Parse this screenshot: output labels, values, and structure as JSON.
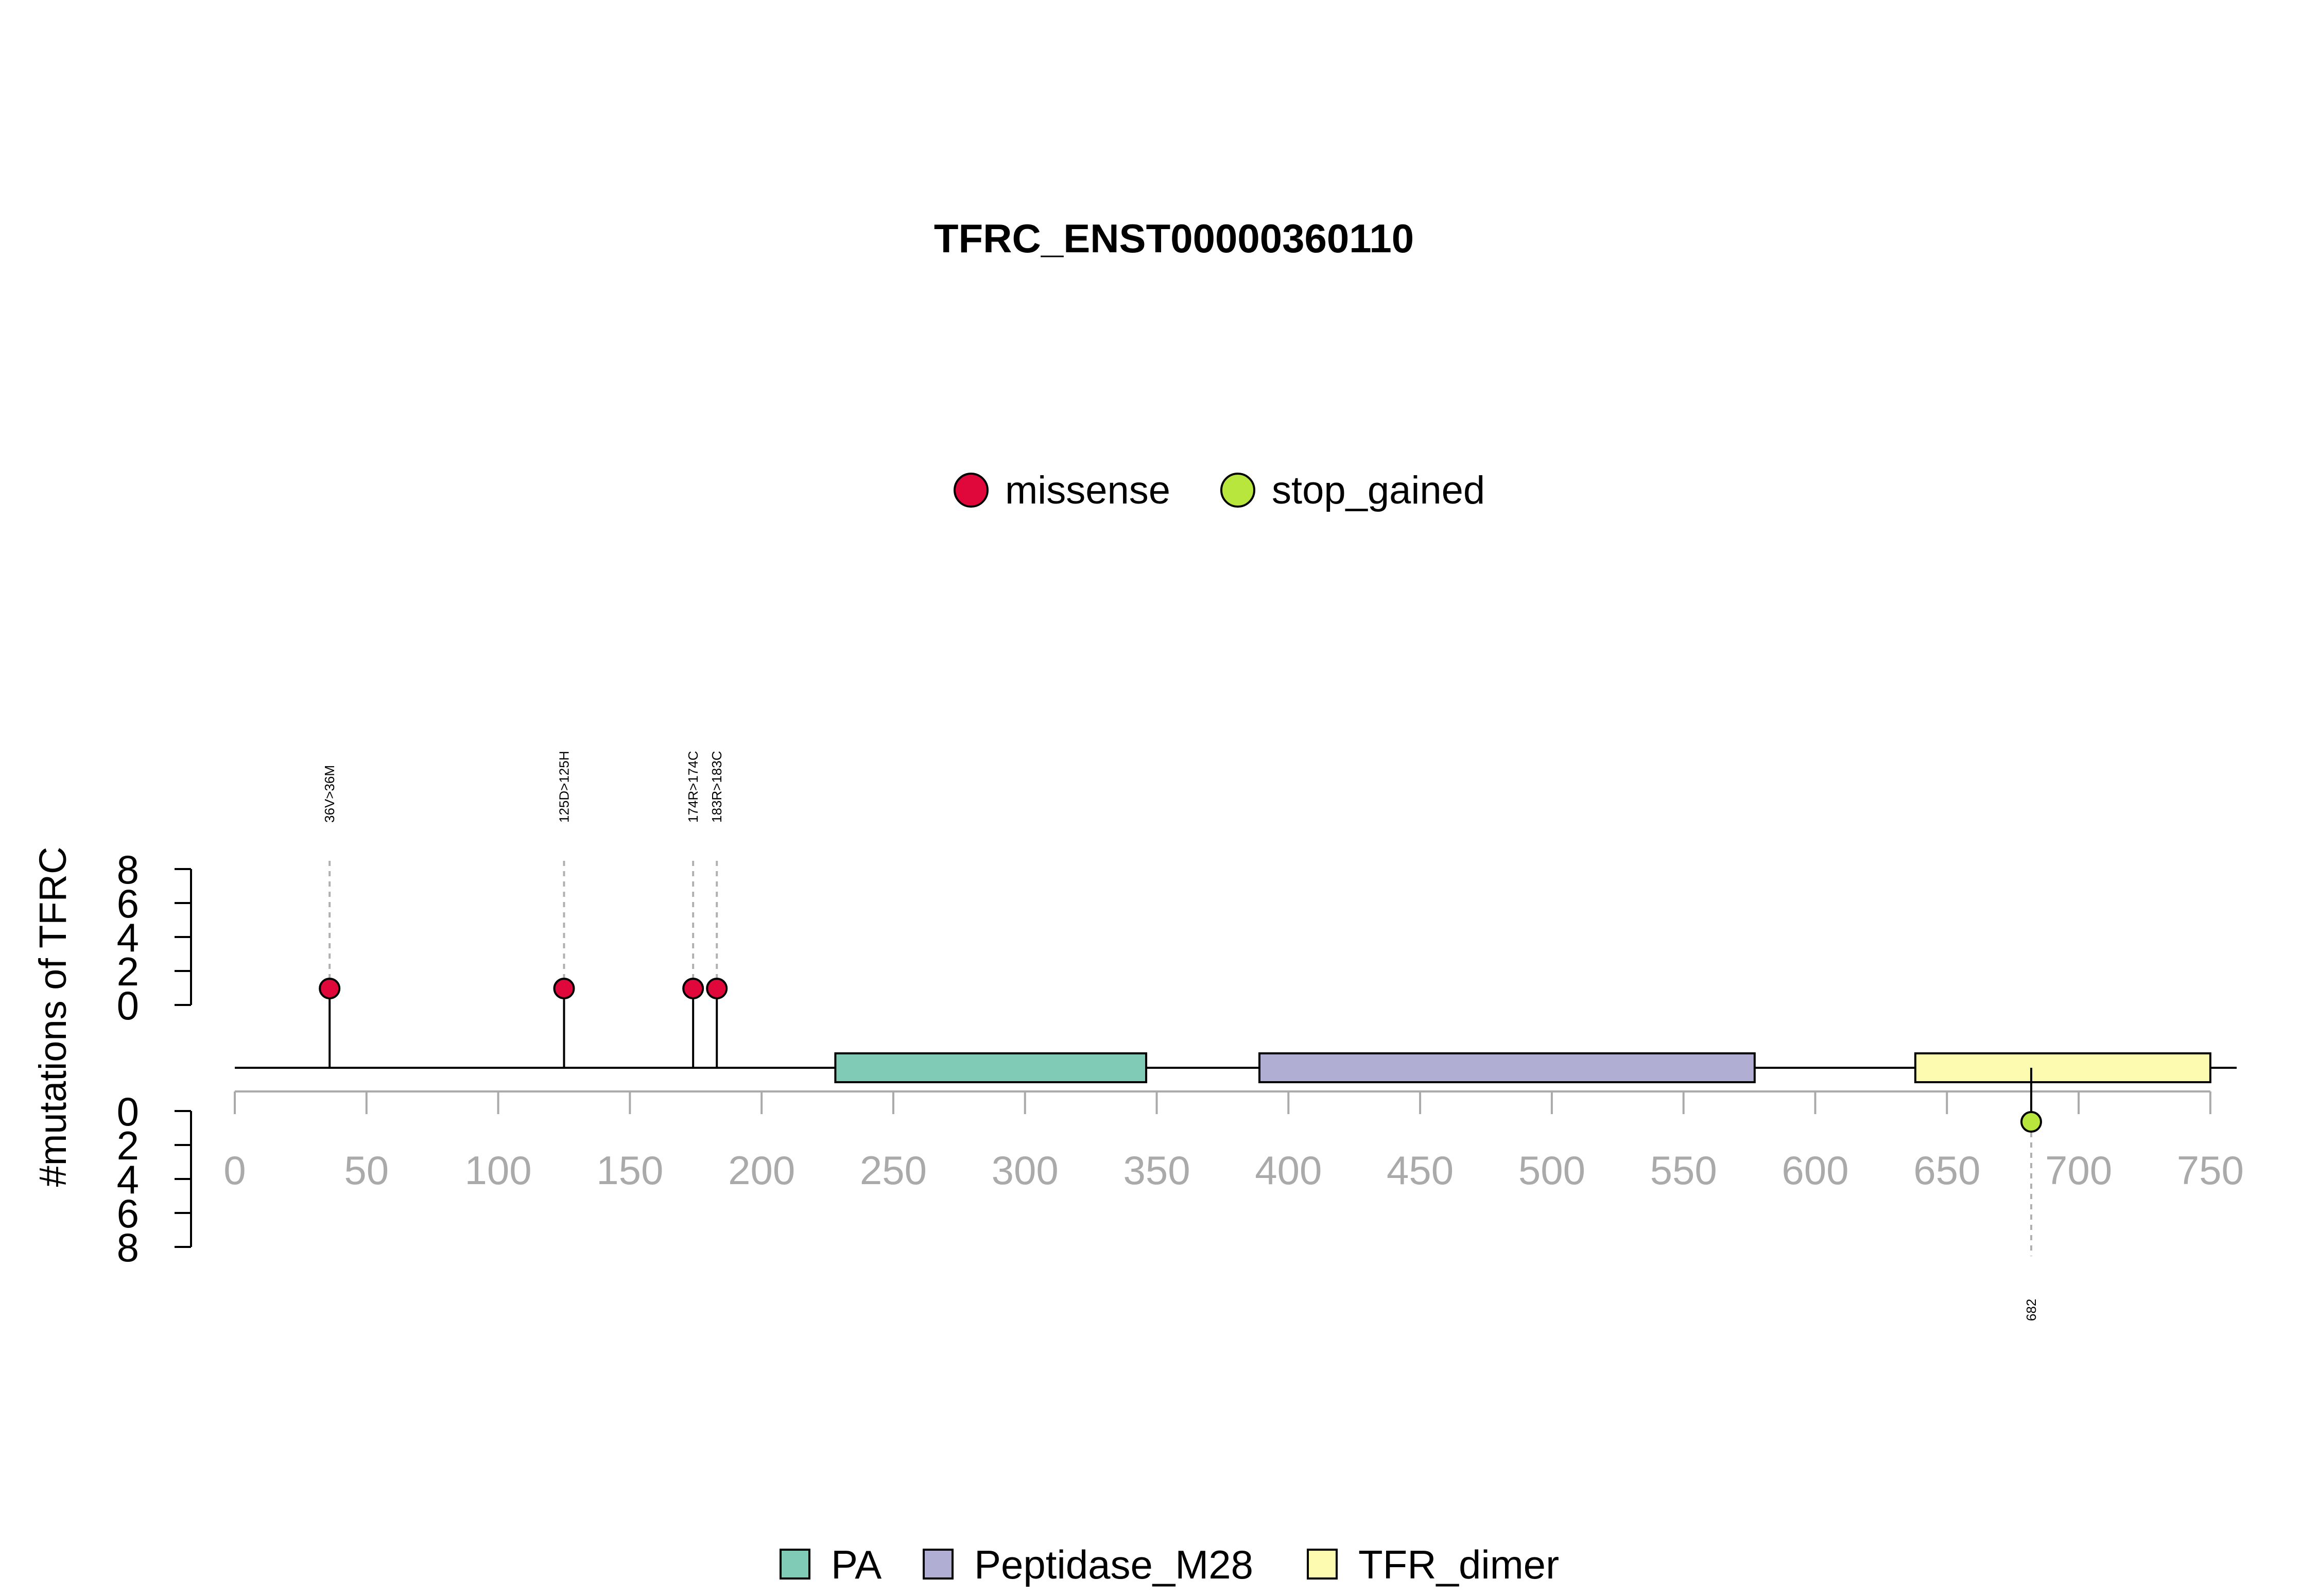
{
  "chart_data": {
    "type": "lollipop",
    "title": "TFRC_ENST00000360110",
    "ylabel": "#mutations of TFRC",
    "xlim": [
      0,
      760
    ],
    "x_ticks": [
      "0",
      "50",
      "100",
      "150",
      "200",
      "250",
      "300",
      "350",
      "400",
      "450",
      "500",
      "550",
      "600",
      "650",
      "700",
      "750"
    ],
    "y_ticks": [
      "0",
      "2",
      "4",
      "6",
      "8"
    ],
    "ylim": [
      0,
      8
    ],
    "protein_length": 760,
    "mutation_legend": [
      {
        "name": "missense",
        "color": "#e0073b"
      },
      {
        "name": "stop_gained",
        "color": "#b8e63c"
      }
    ],
    "domain_legend": [
      {
        "name": "PA",
        "color": "#7fcbb6"
      },
      {
        "name": "Peptidase_M28",
        "color": "#b1aed3"
      },
      {
        "name": "TFR_dimer",
        "color": "#fdfbb0"
      }
    ],
    "domains": [
      {
        "name": "PA",
        "start": 228,
        "end": 346,
        "color": "#7fcbb6"
      },
      {
        "name": "Peptidase_M28",
        "start": 389,
        "end": 577,
        "color": "#b1aed3"
      },
      {
        "name": "TFR_dimer",
        "start": 638,
        "end": 750,
        "color": "#fdfbb0"
      }
    ],
    "mutations_top": [
      {
        "pos": 36,
        "count": 1,
        "type": "missense",
        "label": "36V>36M",
        "color": "#e0073b"
      },
      {
        "pos": 125,
        "count": 1,
        "type": "missense",
        "label": "125D>125H",
        "color": "#e0073b"
      },
      {
        "pos": 174,
        "count": 1,
        "type": "missense",
        "label": "174R>174C",
        "color": "#e0073b"
      },
      {
        "pos": 183,
        "count": 1,
        "type": "missense",
        "label": "183R>183C",
        "color": "#e0073b"
      }
    ],
    "mutations_bottom": [
      {
        "pos": 682,
        "count": 1,
        "type": "stop_gained",
        "label": "682",
        "color": "#b8e63c"
      }
    ]
  }
}
